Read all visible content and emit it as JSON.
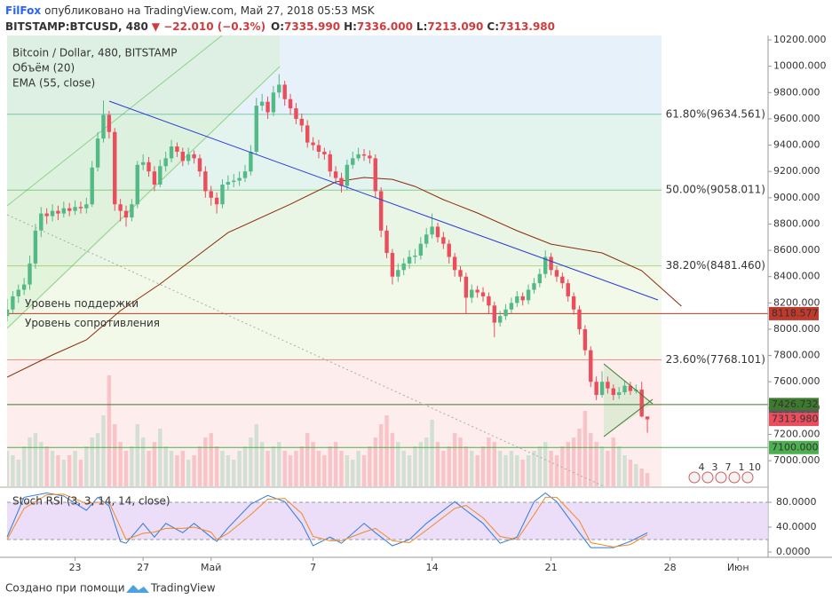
{
  "header": {
    "author": "FilFox",
    "published": "опубликовано на TradingView.com, Май 27, 2018 05:53 MSK"
  },
  "chart_data": {
    "type": "candlestick",
    "symbol": "BITSTAMP:BTCUSD, 480",
    "change": "▼ −22.010 (−0.3%)",
    "quote": [
      {
        "key": "O:",
        "text": "7335.990"
      },
      {
        "key": "H:",
        "text": "7336.000"
      },
      {
        "key": "L:",
        "text": "7213.090"
      },
      {
        "key": "C:",
        "text": "7313.980"
      }
    ],
    "legend": [
      "Bitcoin / Dollar, 480, BITSTAMP",
      "Объём (20)",
      "EMA (55, close)"
    ],
    "up_color": "#53b987",
    "down_color": "#eb4d5c",
    "candles": [
      [
        8100,
        8230,
        8060,
        8150
      ],
      [
        8150,
        8290,
        8120,
        8250
      ],
      [
        8250,
        8340,
        8200,
        8300
      ],
      [
        8300,
        8390,
        8260,
        8340
      ],
      [
        8340,
        8560,
        8300,
        8500
      ],
      [
        8500,
        8800,
        8460,
        8750
      ],
      [
        8750,
        8930,
        8700,
        8880
      ],
      [
        8880,
        8920,
        8800,
        8860
      ],
      [
        8860,
        8950,
        8820,
        8900
      ],
      [
        8900,
        8940,
        8830,
        8880
      ],
      [
        8880,
        8970,
        8850,
        8920
      ],
      [
        8920,
        8960,
        8860,
        8900
      ],
      [
        8900,
        8980,
        8870,
        8930
      ],
      [
        8930,
        8970,
        8880,
        8920
      ],
      [
        8920,
        9000,
        8880,
        8950
      ],
      [
        8950,
        9280,
        8930,
        9230
      ],
      [
        9230,
        9500,
        9200,
        9450
      ],
      [
        9450,
        9740,
        9420,
        9630
      ],
      [
        9630,
        9660,
        9450,
        9500
      ],
      [
        9500,
        9530,
        8900,
        8950
      ],
      [
        8950,
        8990,
        8820,
        8900
      ],
      [
        8900,
        8940,
        8780,
        8850
      ],
      [
        8850,
        8990,
        8820,
        8950
      ],
      [
        8950,
        9280,
        8920,
        9250
      ],
      [
        9250,
        9330,
        9210,
        9270
      ],
      [
        9270,
        9310,
        9160,
        9200
      ],
      [
        9200,
        9240,
        9050,
        9100
      ],
      [
        9100,
        9290,
        9080,
        9240
      ],
      [
        9240,
        9350,
        9200,
        9300
      ],
      [
        9300,
        9440,
        9270,
        9390
      ],
      [
        9390,
        9420,
        9310,
        9350
      ],
      [
        9350,
        9380,
        9240,
        9280
      ],
      [
        9280,
        9380,
        9250,
        9330
      ],
      [
        9330,
        9360,
        9260,
        9300
      ],
      [
        9300,
        9330,
        9160,
        9200
      ],
      [
        9200,
        9240,
        9000,
        9050
      ],
      [
        9050,
        9090,
        8940,
        9000
      ],
      [
        9000,
        9040,
        8880,
        8950
      ],
      [
        8950,
        9140,
        8920,
        9100
      ],
      [
        9100,
        9170,
        9060,
        9120
      ],
      [
        9120,
        9180,
        9080,
        9130
      ],
      [
        9130,
        9200,
        9090,
        9150
      ],
      [
        9150,
        9250,
        9120,
        9200
      ],
      [
        9200,
        9400,
        9170,
        9350
      ],
      [
        9350,
        9760,
        9330,
        9700
      ],
      [
        9700,
        9790,
        9660,
        9730
      ],
      [
        9730,
        9770,
        9600,
        9650
      ],
      [
        9650,
        9850,
        9620,
        9800
      ],
      [
        9800,
        9940,
        9760,
        9860
      ],
      [
        9860,
        9890,
        9700,
        9750
      ],
      [
        9750,
        9790,
        9630,
        9680
      ],
      [
        9680,
        9720,
        9560,
        9600
      ],
      [
        9600,
        9640,
        9500,
        9550
      ],
      [
        9550,
        9590,
        9380,
        9420
      ],
      [
        9420,
        9460,
        9360,
        9400
      ],
      [
        9400,
        9440,
        9300,
        9350
      ],
      [
        9350,
        9380,
        9290,
        9330
      ],
      [
        9330,
        9360,
        9160,
        9200
      ],
      [
        9200,
        9240,
        9110,
        9150
      ],
      [
        9150,
        9190,
        9040,
        9090
      ],
      [
        9090,
        9290,
        9060,
        9250
      ],
      [
        9250,
        9350,
        9220,
        9300
      ],
      [
        9300,
        9380,
        9280,
        9330
      ],
      [
        9330,
        9370,
        9280,
        9320
      ],
      [
        9320,
        9360,
        9260,
        9300
      ],
      [
        9300,
        9330,
        9000,
        9050
      ],
      [
        9050,
        9080,
        8700,
        8750
      ],
      [
        8750,
        8790,
        8540,
        8580
      ],
      [
        8580,
        8610,
        8340,
        8400
      ],
      [
        8400,
        8500,
        8360,
        8450
      ],
      [
        8450,
        8540,
        8410,
        8500
      ],
      [
        8500,
        8600,
        8460,
        8550
      ],
      [
        8550,
        8610,
        8500,
        8560
      ],
      [
        8560,
        8700,
        8530,
        8650
      ],
      [
        8650,
        8770,
        8620,
        8720
      ],
      [
        8720,
        8880,
        8690,
        8780
      ],
      [
        8780,
        8810,
        8660,
        8700
      ],
      [
        8700,
        8740,
        8610,
        8650
      ],
      [
        8650,
        8680,
        8500,
        8550
      ],
      [
        8550,
        8580,
        8400,
        8450
      ],
      [
        8450,
        8480,
        8360,
        8400
      ],
      [
        8400,
        8430,
        8120,
        8240
      ],
      [
        8240,
        8340,
        8200,
        8300
      ],
      [
        8300,
        8330,
        8240,
        8280
      ],
      [
        8280,
        8320,
        8210,
        8250
      ],
      [
        8250,
        8280,
        8120,
        8180
      ],
      [
        8180,
        8210,
        7940,
        8050
      ],
      [
        8050,
        8140,
        8020,
        8100
      ],
      [
        8100,
        8190,
        8070,
        8150
      ],
      [
        8150,
        8240,
        8120,
        8200
      ],
      [
        8200,
        8290,
        8170,
        8250
      ],
      [
        8250,
        8280,
        8180,
        8220
      ],
      [
        8220,
        8340,
        8190,
        8300
      ],
      [
        8300,
        8390,
        8270,
        8350
      ],
      [
        8350,
        8460,
        8320,
        8420
      ],
      [
        8420,
        8600,
        8390,
        8550
      ],
      [
        8550,
        8580,
        8410,
        8450
      ],
      [
        8450,
        8480,
        8360,
        8400
      ],
      [
        8400,
        8430,
        8310,
        8350
      ],
      [
        8350,
        8380,
        8210,
        8250
      ],
      [
        8250,
        8280,
        8110,
        8150
      ],
      [
        8150,
        8180,
        7960,
        8000
      ],
      [
        8000,
        8030,
        7800,
        7840
      ],
      [
        7840,
        7870,
        7560,
        7600
      ],
      [
        7600,
        7640,
        7460,
        7500
      ],
      [
        7500,
        7680,
        7480,
        7600
      ],
      [
        7600,
        7640,
        7510,
        7550
      ],
      [
        7550,
        7580,
        7460,
        7500
      ],
      [
        7500,
        7560,
        7470,
        7520
      ],
      [
        7520,
        7610,
        7500,
        7570
      ],
      [
        7570,
        7600,
        7500,
        7530
      ],
      [
        7530,
        7580,
        7510,
        7540
      ],
      [
        7540,
        7600,
        7330,
        7335.99
      ],
      [
        7335.99,
        7336,
        7213.09,
        7313.98
      ]
    ],
    "volume": [
      40,
      35,
      30,
      45,
      55,
      60,
      50,
      45,
      40,
      35,
      30,
      35,
      40,
      30,
      45,
      55,
      60,
      80,
      125,
      70,
      50,
      40,
      45,
      70,
      55,
      40,
      50,
      65,
      45,
      40,
      35,
      40,
      30,
      35,
      45,
      55,
      60,
      45,
      40,
      35,
      30,
      40,
      45,
      55,
      70,
      50,
      40,
      45,
      50,
      40,
      35,
      40,
      45,
      60,
      50,
      40,
      35,
      45,
      50,
      40,
      35,
      30,
      40,
      35,
      45,
      55,
      70,
      80,
      60,
      50,
      40,
      35,
      45,
      50,
      55,
      75,
      50,
      40,
      45,
      60,
      55,
      45,
      40,
      35,
      45,
      55,
      50,
      40,
      35,
      40,
      35,
      30,
      35,
      40,
      45,
      50,
      40,
      35,
      45,
      50,
      55,
      65,
      85,
      60,
      50,
      45,
      40,
      55,
      45,
      35,
      30,
      25,
      20,
      15
    ],
    "ema": {
      "color": "#8b2a0a",
      "x": [
        0,
        8,
        14,
        20,
        27,
        39,
        50,
        58,
        63,
        68,
        72,
        77,
        83,
        90,
        96,
        105,
        112,
        119
      ],
      "values": [
        7635,
        7804,
        7919,
        8141,
        8344,
        8735,
        8951,
        9120,
        9154,
        9140,
        9086,
        8985,
        8884,
        8749,
        8647,
        8580,
        8445,
        8175
      ]
    },
    "xlim": [
      0,
      134.3
    ],
    "xticks": [
      {
        "value": 12,
        "label": "23"
      },
      {
        "value": 24,
        "label": "27"
      },
      {
        "value": 36,
        "label": "Май"
      },
      {
        "value": 54,
        "label": "7"
      },
      {
        "value": 75,
        "label": "14"
      },
      {
        "value": 96,
        "label": "21"
      },
      {
        "value": 117,
        "label": "28"
      },
      {
        "value": 129,
        "label": "Июн"
      }
    ],
    "ylim": [
      6805,
      10234
    ],
    "yticks": [
      {
        "value": 7000,
        "label": "7000.000"
      },
      {
        "value": 7200,
        "label": "7200.000"
      },
      {
        "value": 7400,
        "label": "7400.000"
      },
      {
        "value": 7600,
        "label": "7600.000"
      },
      {
        "value": 7800,
        "label": "7800.000"
      },
      {
        "value": 8000,
        "label": "8000.000"
      },
      {
        "value": 8200,
        "label": "8200.000"
      },
      {
        "value": 8400,
        "label": "8400.000"
      },
      {
        "value": 8600,
        "label": "8600.000"
      },
      {
        "value": 8800,
        "label": "8800.000"
      },
      {
        "value": 9000,
        "label": "9000.000"
      },
      {
        "value": 9200,
        "label": "9200.000"
      },
      {
        "value": 9400,
        "label": "9400.000"
      },
      {
        "value": 9600,
        "label": "9600.000"
      },
      {
        "value": 9800,
        "label": "9800.000"
      },
      {
        "value": 10000,
        "label": "10000.000"
      },
      {
        "value": 10200,
        "label": "10200.000"
      }
    ],
    "fib_top_fill": "#e7f1fa",
    "fib": [
      {
        "value": 9634.561,
        "label": "61.80%(9634.561)",
        "color": "#3aa88a",
        "fill": "#e3f3ee"
      },
      {
        "value": 9058.011,
        "label": "50.00%(9058.011)",
        "color": "#4caf50",
        "fill": "#eaf6e5"
      },
      {
        "value": 8481.46,
        "label": "38.20%(8481.460)",
        "color": "#8bb93a",
        "fill": "#f3f9e9"
      },
      {
        "value": 7768.101,
        "label": "23.60%(7768.101)",
        "color": "#e0454c",
        "fill": "#fdeded"
      }
    ],
    "levels": [
      {
        "value": 8118.577,
        "label": "8118.577",
        "color": "#c0392b"
      },
      {
        "value": 7426.732,
        "label": "7426.732",
        "color": "#3d7a2e"
      },
      {
        "value": 7100,
        "label": "7100.000",
        "color": "#4caf50"
      }
    ],
    "price_tags": [
      {
        "value": 7335.99,
        "label": "7335.990",
        "color": "#5b5b5b"
      },
      {
        "value": 7313.98,
        "label": "7313.980",
        "color": "#eb4d5c"
      }
    ],
    "annotations": [
      {
        "text": "Уровень поддержки",
        "color": "#3d7a1e"
      },
      {
        "text": "Уровень сопротивления",
        "color": "#b5441a"
      }
    ],
    "events": [
      "4",
      "3",
      "7",
      "1",
      "10"
    ],
    "stoch": {
      "title": "Stoch RSI (3, 3, 14, 14, close)",
      "ylim": [
        -8.6,
        102.9
      ],
      "yticks": [
        {
          "value": 0,
          "label": "0.0000"
        },
        {
          "value": 40,
          "label": "40.0000"
        },
        {
          "value": 80,
          "label": "80.0000"
        }
      ],
      "band": [
        20,
        80
      ],
      "band_color": "#e7d4f7",
      "x": [
        0,
        3,
        7,
        10,
        14,
        16,
        18,
        20,
        21,
        24,
        26,
        28,
        31,
        33,
        36,
        37,
        39,
        43,
        46,
        49,
        52,
        54,
        57,
        59,
        63,
        65,
        68,
        71,
        74,
        79,
        81,
        84,
        87,
        90,
        93,
        95,
        97,
        101,
        103,
        107,
        110,
        113
      ],
      "series": [
        {
          "color": "#2f7bd8",
          "values": [
            24,
            88,
            95,
            90,
            67,
            88,
            74,
            17,
            14,
            46,
            24,
            46,
            31,
            46,
            24,
            17,
            39,
            77,
            91,
            81,
            46,
            10,
            24,
            14,
            46,
            31,
            10,
            20,
            46,
            81,
            67,
            46,
            14,
            24,
            81,
            95,
            81,
            31,
            7,
            7,
            17,
            31
          ]
        },
        {
          "color": "#f08a24",
          "values": [
            20,
            70,
            92,
            93,
            78,
            80,
            80,
            40,
            20,
            30,
            32,
            38,
            38,
            40,
            32,
            20,
            30,
            60,
            85,
            86,
            62,
            25,
            18,
            18,
            32,
            38,
            18,
            15,
            35,
            70,
            75,
            55,
            25,
            20,
            60,
            88,
            88,
            50,
            15,
            8,
            12,
            28
          ]
        }
      ]
    }
  },
  "footer": {
    "text": "Создано при помощи",
    "brand": "TradingView"
  }
}
